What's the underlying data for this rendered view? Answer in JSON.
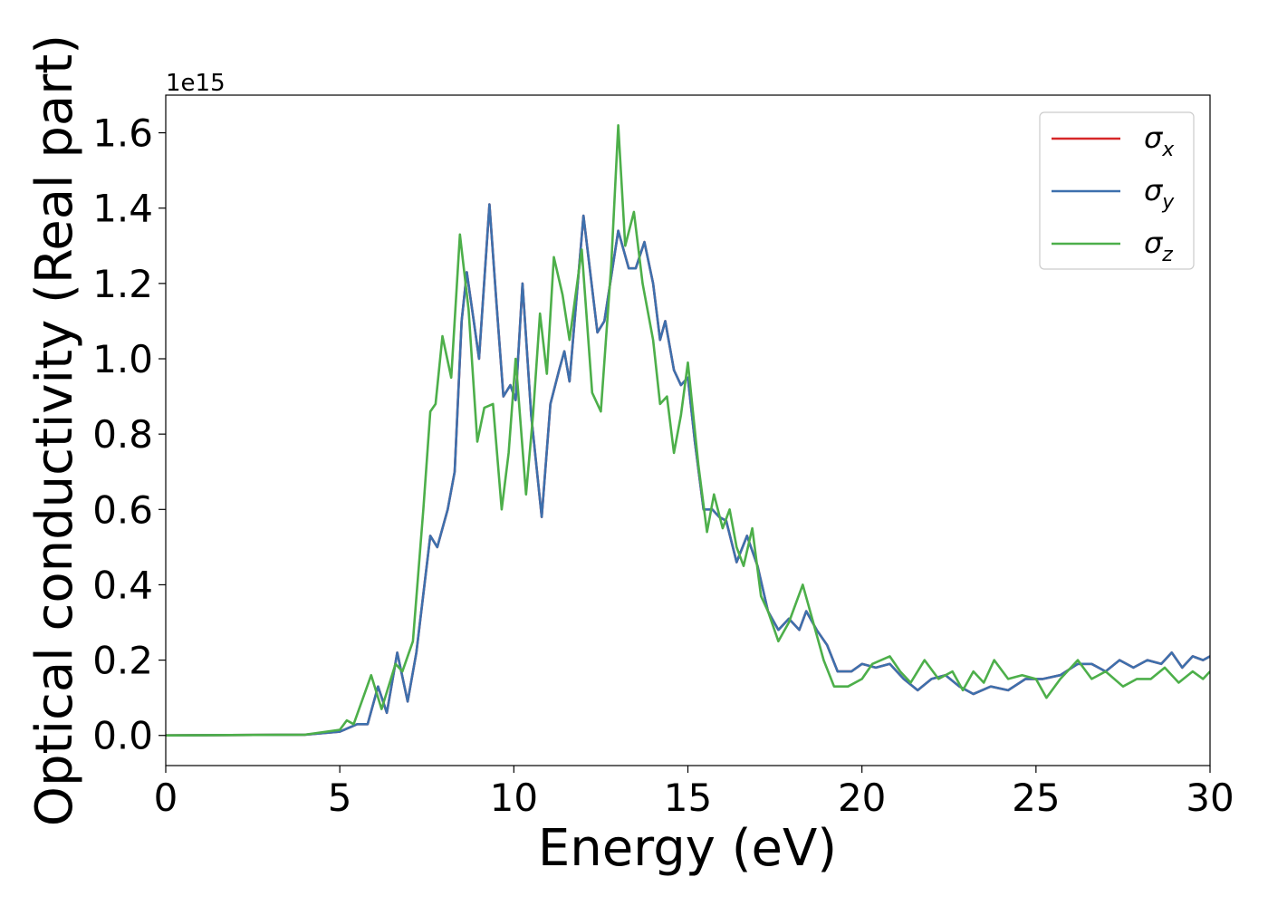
{
  "chart_data": {
    "type": "line",
    "xlabel": "Energy (eV)",
    "ylabel": "Optical conductivity (Real part)",
    "offset_text": "1e15",
    "xlim": [
      0,
      30
    ],
    "ylim": [
      -0.08,
      1.7
    ],
    "xticks": [
      0,
      5,
      10,
      15,
      20,
      25,
      30
    ],
    "xtick_labels": [
      "0",
      "5",
      "10",
      "15",
      "20",
      "25",
      "30"
    ],
    "yticks": [
      0.0,
      0.2,
      0.4,
      0.6,
      0.8,
      1.0,
      1.2,
      1.4,
      1.6
    ],
    "ytick_labels": [
      "0.0",
      "0.2",
      "0.4",
      "0.6",
      "0.8",
      "1.0",
      "1.2",
      "1.4",
      "1.6"
    ],
    "legend_position": "top-right",
    "grid": false,
    "series": [
      {
        "name": "σx",
        "label_base": "σ",
        "label_sub": "x",
        "color": "#d62728",
        "points": [
          [
            0,
            0
          ],
          [
            4,
            0.002
          ],
          [
            5,
            0.01
          ],
          [
            5.5,
            0.03
          ],
          [
            5.8,
            0.03
          ],
          [
            6.1,
            0.13
          ],
          [
            6.35,
            0.06
          ],
          [
            6.65,
            0.22
          ],
          [
            6.95,
            0.09
          ],
          [
            7.2,
            0.22
          ],
          [
            7.6,
            0.53
          ],
          [
            7.8,
            0.5
          ],
          [
            8.1,
            0.6
          ],
          [
            8.3,
            0.7
          ],
          [
            8.5,
            1.1
          ],
          [
            8.65,
            1.23
          ],
          [
            8.85,
            1.1
          ],
          [
            9.0,
            1.0
          ],
          [
            9.3,
            1.41
          ],
          [
            9.5,
            1.15
          ],
          [
            9.7,
            0.9
          ],
          [
            9.9,
            0.93
          ],
          [
            10.05,
            0.89
          ],
          [
            10.25,
            1.2
          ],
          [
            10.5,
            0.85
          ],
          [
            10.8,
            0.58
          ],
          [
            11.05,
            0.88
          ],
          [
            11.3,
            0.97
          ],
          [
            11.45,
            1.02
          ],
          [
            11.6,
            0.94
          ],
          [
            12.0,
            1.38
          ],
          [
            12.4,
            1.07
          ],
          [
            12.6,
            1.1
          ],
          [
            13.0,
            1.34
          ],
          [
            13.3,
            1.24
          ],
          [
            13.5,
            1.24
          ],
          [
            13.75,
            1.31
          ],
          [
            14.0,
            1.2
          ],
          [
            14.2,
            1.05
          ],
          [
            14.35,
            1.1
          ],
          [
            14.6,
            0.97
          ],
          [
            14.8,
            0.93
          ],
          [
            15.0,
            0.95
          ],
          [
            15.2,
            0.78
          ],
          [
            15.45,
            0.6
          ],
          [
            15.7,
            0.6
          ],
          [
            15.9,
            0.58
          ],
          [
            16.1,
            0.57
          ],
          [
            16.4,
            0.46
          ],
          [
            16.7,
            0.53
          ],
          [
            17.0,
            0.45
          ],
          [
            17.3,
            0.33
          ],
          [
            17.6,
            0.28
          ],
          [
            17.9,
            0.31
          ],
          [
            18.2,
            0.28
          ],
          [
            18.4,
            0.33
          ],
          [
            18.7,
            0.28
          ],
          [
            19.0,
            0.24
          ],
          [
            19.3,
            0.17
          ],
          [
            19.7,
            0.17
          ],
          [
            20.0,
            0.19
          ],
          [
            20.4,
            0.18
          ],
          [
            20.8,
            0.19
          ],
          [
            21.2,
            0.15
          ],
          [
            21.6,
            0.12
          ],
          [
            22.0,
            0.15
          ],
          [
            22.4,
            0.16
          ],
          [
            22.8,
            0.13
          ],
          [
            23.2,
            0.11
          ],
          [
            23.7,
            0.13
          ],
          [
            24.2,
            0.12
          ],
          [
            24.7,
            0.15
          ],
          [
            25.2,
            0.15
          ],
          [
            25.7,
            0.16
          ],
          [
            26.2,
            0.19
          ],
          [
            26.6,
            0.19
          ],
          [
            27.0,
            0.17
          ],
          [
            27.4,
            0.2
          ],
          [
            27.8,
            0.18
          ],
          [
            28.2,
            0.2
          ],
          [
            28.6,
            0.19
          ],
          [
            28.9,
            0.22
          ],
          [
            29.2,
            0.18
          ],
          [
            29.5,
            0.21
          ],
          [
            29.8,
            0.2
          ],
          [
            30,
            0.21
          ]
        ]
      },
      {
        "name": "σy",
        "label_base": "σ",
        "label_sub": "y",
        "color": "#3d70ad",
        "points": [
          [
            0,
            0
          ],
          [
            4,
            0.002
          ],
          [
            5,
            0.01
          ],
          [
            5.5,
            0.03
          ],
          [
            5.8,
            0.03
          ],
          [
            6.1,
            0.13
          ],
          [
            6.35,
            0.06
          ],
          [
            6.65,
            0.22
          ],
          [
            6.95,
            0.09
          ],
          [
            7.2,
            0.22
          ],
          [
            7.6,
            0.53
          ],
          [
            7.8,
            0.5
          ],
          [
            8.1,
            0.6
          ],
          [
            8.3,
            0.7
          ],
          [
            8.5,
            1.1
          ],
          [
            8.65,
            1.23
          ],
          [
            8.85,
            1.1
          ],
          [
            9.0,
            1.0
          ],
          [
            9.3,
            1.41
          ],
          [
            9.5,
            1.15
          ],
          [
            9.7,
            0.9
          ],
          [
            9.9,
            0.93
          ],
          [
            10.05,
            0.89
          ],
          [
            10.25,
            1.2
          ],
          [
            10.5,
            0.85
          ],
          [
            10.8,
            0.58
          ],
          [
            11.05,
            0.88
          ],
          [
            11.3,
            0.97
          ],
          [
            11.45,
            1.02
          ],
          [
            11.6,
            0.94
          ],
          [
            12.0,
            1.38
          ],
          [
            12.4,
            1.07
          ],
          [
            12.6,
            1.1
          ],
          [
            13.0,
            1.34
          ],
          [
            13.3,
            1.24
          ],
          [
            13.5,
            1.24
          ],
          [
            13.75,
            1.31
          ],
          [
            14.0,
            1.2
          ],
          [
            14.2,
            1.05
          ],
          [
            14.35,
            1.1
          ],
          [
            14.6,
            0.97
          ],
          [
            14.8,
            0.93
          ],
          [
            15.0,
            0.95
          ],
          [
            15.2,
            0.78
          ],
          [
            15.45,
            0.6
          ],
          [
            15.7,
            0.6
          ],
          [
            15.9,
            0.58
          ],
          [
            16.1,
            0.57
          ],
          [
            16.4,
            0.46
          ],
          [
            16.7,
            0.53
          ],
          [
            17.0,
            0.45
          ],
          [
            17.3,
            0.33
          ],
          [
            17.6,
            0.28
          ],
          [
            17.9,
            0.31
          ],
          [
            18.2,
            0.28
          ],
          [
            18.4,
            0.33
          ],
          [
            18.7,
            0.28
          ],
          [
            19.0,
            0.24
          ],
          [
            19.3,
            0.17
          ],
          [
            19.7,
            0.17
          ],
          [
            20.0,
            0.19
          ],
          [
            20.4,
            0.18
          ],
          [
            20.8,
            0.19
          ],
          [
            21.2,
            0.15
          ],
          [
            21.6,
            0.12
          ],
          [
            22.0,
            0.15
          ],
          [
            22.4,
            0.16
          ],
          [
            22.8,
            0.13
          ],
          [
            23.2,
            0.11
          ],
          [
            23.7,
            0.13
          ],
          [
            24.2,
            0.12
          ],
          [
            24.7,
            0.15
          ],
          [
            25.2,
            0.15
          ],
          [
            25.7,
            0.16
          ],
          [
            26.2,
            0.19
          ],
          [
            26.6,
            0.19
          ],
          [
            27.0,
            0.17
          ],
          [
            27.4,
            0.2
          ],
          [
            27.8,
            0.18
          ],
          [
            28.2,
            0.2
          ],
          [
            28.6,
            0.19
          ],
          [
            28.9,
            0.22
          ],
          [
            29.2,
            0.18
          ],
          [
            29.5,
            0.21
          ],
          [
            29.8,
            0.2
          ],
          [
            30,
            0.21
          ]
        ]
      },
      {
        "name": "σz",
        "label_base": "σ",
        "label_sub": "z",
        "color": "#4daf4a",
        "points": [
          [
            0,
            0
          ],
          [
            4,
            0.002
          ],
          [
            5,
            0.015
          ],
          [
            5.2,
            0.04
          ],
          [
            5.4,
            0.03
          ],
          [
            5.9,
            0.16
          ],
          [
            6.2,
            0.07
          ],
          [
            6.6,
            0.19
          ],
          [
            6.8,
            0.17
          ],
          [
            7.1,
            0.25
          ],
          [
            7.4,
            0.6
          ],
          [
            7.6,
            0.86
          ],
          [
            7.75,
            0.88
          ],
          [
            7.95,
            1.06
          ],
          [
            8.2,
            0.95
          ],
          [
            8.45,
            1.33
          ],
          [
            8.7,
            1.13
          ],
          [
            8.95,
            0.78
          ],
          [
            9.15,
            0.87
          ],
          [
            9.4,
            0.88
          ],
          [
            9.65,
            0.6
          ],
          [
            9.85,
            0.75
          ],
          [
            10.05,
            1.0
          ],
          [
            10.35,
            0.64
          ],
          [
            10.55,
            0.85
          ],
          [
            10.75,
            1.12
          ],
          [
            10.95,
            0.96
          ],
          [
            11.15,
            1.27
          ],
          [
            11.4,
            1.17
          ],
          [
            11.6,
            1.05
          ],
          [
            11.95,
            1.29
          ],
          [
            12.25,
            0.91
          ],
          [
            12.5,
            0.86
          ],
          [
            12.8,
            1.25
          ],
          [
            13.0,
            1.62
          ],
          [
            13.2,
            1.3
          ],
          [
            13.45,
            1.39
          ],
          [
            13.7,
            1.2
          ],
          [
            14.0,
            1.05
          ],
          [
            14.2,
            0.88
          ],
          [
            14.4,
            0.9
          ],
          [
            14.6,
            0.75
          ],
          [
            14.8,
            0.85
          ],
          [
            15.0,
            0.99
          ],
          [
            15.3,
            0.72
          ],
          [
            15.55,
            0.54
          ],
          [
            15.75,
            0.64
          ],
          [
            16.0,
            0.55
          ],
          [
            16.2,
            0.6
          ],
          [
            16.4,
            0.5
          ],
          [
            16.6,
            0.45
          ],
          [
            16.85,
            0.55
          ],
          [
            17.1,
            0.37
          ],
          [
            17.3,
            0.33
          ],
          [
            17.6,
            0.25
          ],
          [
            17.9,
            0.3
          ],
          [
            18.3,
            0.4
          ],
          [
            18.6,
            0.3
          ],
          [
            18.9,
            0.2
          ],
          [
            19.2,
            0.13
          ],
          [
            19.6,
            0.13
          ],
          [
            20.0,
            0.15
          ],
          [
            20.3,
            0.19
          ],
          [
            20.8,
            0.21
          ],
          [
            21.1,
            0.17
          ],
          [
            21.4,
            0.14
          ],
          [
            21.8,
            0.2
          ],
          [
            22.2,
            0.15
          ],
          [
            22.6,
            0.17
          ],
          [
            22.9,
            0.12
          ],
          [
            23.2,
            0.17
          ],
          [
            23.5,
            0.14
          ],
          [
            23.8,
            0.2
          ],
          [
            24.2,
            0.15
          ],
          [
            24.6,
            0.16
          ],
          [
            25.0,
            0.15
          ],
          [
            25.3,
            0.1
          ],
          [
            25.7,
            0.15
          ],
          [
            26.2,
            0.2
          ],
          [
            26.6,
            0.15
          ],
          [
            27.0,
            0.17
          ],
          [
            27.5,
            0.13
          ],
          [
            27.9,
            0.15
          ],
          [
            28.3,
            0.15
          ],
          [
            28.7,
            0.18
          ],
          [
            29.1,
            0.14
          ],
          [
            29.5,
            0.17
          ],
          [
            29.8,
            0.15
          ],
          [
            30,
            0.17
          ]
        ]
      }
    ]
  }
}
